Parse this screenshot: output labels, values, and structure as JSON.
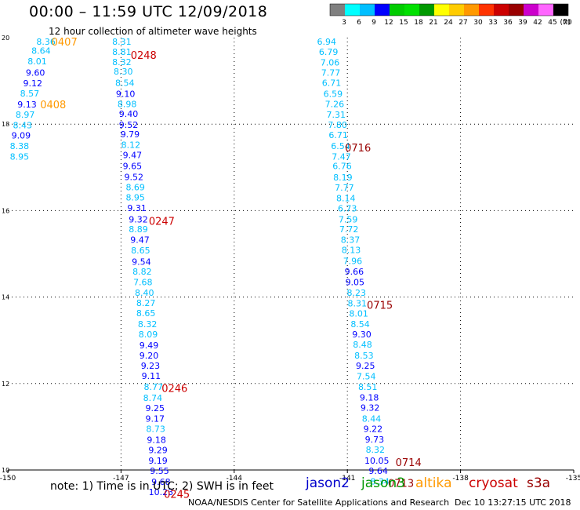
{
  "header": {
    "title": "00:00 – 11:59 UTC 12/09/2018",
    "subtitle": "12 hour collection of altimeter wave heights"
  },
  "footer": {
    "note": "note:  1) Time is in UTC;  2) SWH is in feet",
    "credit": "NOAA/NESDIS Center for Satellite Applications and Research",
    "timestamp": "Dec 10 13:27:15 UTC 2018"
  },
  "satellites": [
    {
      "name": "jason2",
      "color": "#0000cc"
    },
    {
      "name": "jason3",
      "color": "#009900"
    },
    {
      "name": "altika",
      "color": "#ff9900"
    },
    {
      "name": "cryosat",
      "color": "#cc0000"
    },
    {
      "name": "s3a",
      "color": "#990000"
    }
  ],
  "colorbar": {
    "unit": "(ft)",
    "labels": [
      "3",
      "6",
      "9",
      "12",
      "15",
      "18",
      "21",
      "24",
      "27",
      "30",
      "33",
      "36",
      "39",
      "42",
      "45",
      "70"
    ],
    "colors": [
      "#808080",
      "#00ffff",
      "#00bfff",
      "#0000ff",
      "#00cc00",
      "#00e000",
      "#009900",
      "#ffff00",
      "#ffcc00",
      "#ff9900",
      "#ff3300",
      "#cc0000",
      "#990000",
      "#cc00cc",
      "#ff66ff",
      "#000000"
    ]
  },
  "chart_data": {
    "type": "scatter",
    "xlim": [
      -150,
      -135
    ],
    "ylim": [
      10,
      20
    ],
    "x_ticks": [
      "-150",
      "-147",
      "-144",
      "-141",
      "-138",
      "-135"
    ],
    "x_tick_values": [
      -150,
      -147,
      -144,
      -141,
      -138,
      -135
    ],
    "y_ticks": [
      "10",
      "12",
      "14",
      "16",
      "18",
      "20"
    ],
    "y_tick_values": [
      10,
      12,
      14,
      16,
      18,
      20
    ],
    "grid": "dotted",
    "series": [
      {
        "name": "altika",
        "color": "#ff9900",
        "points": [
          {
            "x": -148.99,
            "y": 19.91,
            "v": "8.36",
            "c": "#00bfff"
          },
          {
            "x": -149.12,
            "y": 19.7,
            "v": "8.64",
            "c": "#00bfff"
          },
          {
            "x": -149.22,
            "y": 19.46,
            "v": "8.01",
            "c": "#00bfff"
          },
          {
            "x": -149.27,
            "y": 19.19,
            "v": "9.60",
            "c": "#0000ff"
          },
          {
            "x": -149.34,
            "y": 18.95,
            "v": "9.12",
            "c": "#0000ff"
          },
          {
            "x": -149.42,
            "y": 18.71,
            "v": "8.57",
            "c": "#00bfff"
          },
          {
            "x": -149.49,
            "y": 18.46,
            "v": "9.13",
            "c": "#0000ff"
          },
          {
            "x": -149.54,
            "y": 18.22,
            "v": "8.97",
            "c": "#00bfff"
          },
          {
            "x": -149.61,
            "y": 17.98,
            "v": "8.43",
            "c": "#00bfff"
          },
          {
            "x": -149.65,
            "y": 17.74,
            "v": "9.09",
            "c": "#0000ff"
          },
          {
            "x": -149.69,
            "y": 17.5,
            "v": "8.38",
            "c": "#00bfff"
          },
          {
            "x": -149.69,
            "y": 17.25,
            "v": "8.95",
            "c": "#00bfff"
          }
        ]
      },
      {
        "name": "cryosat",
        "color": "#cc0000",
        "points": [
          {
            "x": -146.98,
            "y": 19.91,
            "v": "8.31",
            "c": "#00bfff"
          },
          {
            "x": -146.98,
            "y": 19.67,
            "v": "8.81",
            "c": "#00bfff"
          },
          {
            "x": -146.98,
            "y": 19.44,
            "v": "8.32",
            "c": "#00bfff"
          },
          {
            "x": -146.94,
            "y": 19.22,
            "v": "8.30",
            "c": "#00bfff"
          },
          {
            "x": -146.9,
            "y": 18.96,
            "v": "8.54",
            "c": "#00bfff"
          },
          {
            "x": -146.88,
            "y": 18.7,
            "v": "9.10",
            "c": "#0000ff"
          },
          {
            "x": -146.84,
            "y": 18.47,
            "v": "8.98",
            "c": "#00bfff"
          },
          {
            "x": -146.8,
            "y": 18.24,
            "v": "9.40",
            "c": "#0000ff"
          },
          {
            "x": -146.8,
            "y": 17.99,
            "v": "9.52",
            "c": "#0000ff"
          },
          {
            "x": -146.76,
            "y": 17.77,
            "v": "9.79",
            "c": "#0000ff"
          },
          {
            "x": -146.74,
            "y": 17.52,
            "v": "8.12",
            "c": "#00bfff"
          },
          {
            "x": -146.7,
            "y": 17.29,
            "v": "9.47",
            "c": "#0000ff"
          },
          {
            "x": -146.7,
            "y": 17.03,
            "v": "9.65",
            "c": "#0000ff"
          },
          {
            "x": -146.66,
            "y": 16.78,
            "v": "9.52",
            "c": "#0000ff"
          },
          {
            "x": -146.62,
            "y": 16.54,
            "v": "8.69",
            "c": "#00bfff"
          },
          {
            "x": -146.62,
            "y": 16.31,
            "v": "8.95",
            "c": "#00bfff"
          },
          {
            "x": -146.58,
            "y": 16.06,
            "v": "9.31",
            "c": "#0000ff"
          },
          {
            "x": -146.54,
            "y": 15.8,
            "v": "9.32",
            "c": "#0000ff"
          },
          {
            "x": -146.54,
            "y": 15.57,
            "v": "8.89",
            "c": "#00bfff"
          },
          {
            "x": -146.5,
            "y": 15.33,
            "v": "9.47",
            "c": "#0000ff"
          },
          {
            "x": -146.48,
            "y": 15.08,
            "v": "8.65",
            "c": "#00bfff"
          },
          {
            "x": -146.46,
            "y": 14.82,
            "v": "9.54",
            "c": "#0000ff"
          },
          {
            "x": -146.44,
            "y": 14.59,
            "v": "8.82",
            "c": "#00bfff"
          },
          {
            "x": -146.42,
            "y": 14.35,
            "v": "7.68",
            "c": "#00bfff"
          },
          {
            "x": -146.38,
            "y": 14.1,
            "v": "8.40",
            "c": "#00bfff"
          },
          {
            "x": -146.34,
            "y": 13.87,
            "v": "8.27",
            "c": "#00bfff"
          },
          {
            "x": -146.34,
            "y": 13.63,
            "v": "8.65",
            "c": "#00bfff"
          },
          {
            "x": -146.3,
            "y": 13.38,
            "v": "8.32",
            "c": "#00bfff"
          },
          {
            "x": -146.28,
            "y": 13.14,
            "v": "8.09",
            "c": "#00bfff"
          },
          {
            "x": -146.26,
            "y": 12.89,
            "v": "9.49",
            "c": "#0000ff"
          },
          {
            "x": -146.26,
            "y": 12.65,
            "v": "9.20",
            "c": "#0000ff"
          },
          {
            "x": -146.22,
            "y": 12.41,
            "v": "9.23",
            "c": "#0000ff"
          },
          {
            "x": -146.2,
            "y": 12.18,
            "v": "9.11",
            "c": "#0000ff"
          },
          {
            "x": -146.14,
            "y": 11.92,
            "v": "8.77",
            "c": "#00bfff"
          },
          {
            "x": -146.16,
            "y": 11.67,
            "v": "8.74",
            "c": "#00bfff"
          },
          {
            "x": -146.1,
            "y": 11.43,
            "v": "9.25",
            "c": "#0000ff"
          },
          {
            "x": -146.1,
            "y": 11.19,
            "v": "9.17",
            "c": "#0000ff"
          },
          {
            "x": -146.08,
            "y": 10.95,
            "v": "8.73",
            "c": "#00bfff"
          },
          {
            "x": -146.06,
            "y": 10.7,
            "v": "9.18",
            "c": "#0000ff"
          },
          {
            "x": -146.02,
            "y": 10.46,
            "v": "9.29",
            "c": "#0000ff"
          },
          {
            "x": -146.02,
            "y": 10.22,
            "v": "9.19",
            "c": "#0000ff"
          },
          {
            "x": -145.98,
            "y": 9.98,
            "v": "9.55",
            "c": "#0000ff"
          },
          {
            "x": -145.94,
            "y": 9.73,
            "v": "9.68",
            "c": "#0000ff"
          },
          {
            "x": -145.94,
            "y": 9.49,
            "v": "10.23",
            "c": "#0000ff"
          }
        ]
      },
      {
        "name": "s3a",
        "color": "#990000",
        "points": [
          {
            "x": -141.55,
            "y": 19.91,
            "v": "6.94",
            "c": "#00bfff"
          },
          {
            "x": -141.5,
            "y": 19.67,
            "v": "6.79",
            "c": "#00bfff"
          },
          {
            "x": -141.46,
            "y": 19.43,
            "v": "7.06",
            "c": "#00bfff"
          },
          {
            "x": -141.44,
            "y": 19.19,
            "v": "7.77",
            "c": "#00bfff"
          },
          {
            "x": -141.42,
            "y": 18.96,
            "v": "6.71",
            "c": "#00bfff"
          },
          {
            "x": -141.38,
            "y": 18.7,
            "v": "6.59",
            "c": "#00bfff"
          },
          {
            "x": -141.34,
            "y": 18.47,
            "v": "7.26",
            "c": "#00bfff"
          },
          {
            "x": -141.3,
            "y": 18.22,
            "v": "7.31",
            "c": "#00bfff"
          },
          {
            "x": -141.26,
            "y": 17.99,
            "v": "7.80",
            "c": "#00bfff"
          },
          {
            "x": -141.24,
            "y": 17.75,
            "v": "6.71",
            "c": "#00bfff"
          },
          {
            "x": -141.18,
            "y": 17.5,
            "v": "6.54",
            "c": "#00bfff"
          },
          {
            "x": -141.16,
            "y": 17.25,
            "v": "7.47",
            "c": "#00bfff"
          },
          {
            "x": -141.14,
            "y": 17.03,
            "v": "6.76",
            "c": "#00bfff"
          },
          {
            "x": -141.12,
            "y": 16.77,
            "v": "8.19",
            "c": "#00bfff"
          },
          {
            "x": -141.08,
            "y": 16.53,
            "v": "7.77",
            "c": "#00bfff"
          },
          {
            "x": -141.04,
            "y": 16.29,
            "v": "8.14",
            "c": "#00bfff"
          },
          {
            "x": -141.0,
            "y": 16.05,
            "v": "6.73",
            "c": "#00bfff"
          },
          {
            "x": -140.98,
            "y": 15.8,
            "v": "7.59",
            "c": "#00bfff"
          },
          {
            "x": -140.96,
            "y": 15.57,
            "v": "7.72",
            "c": "#00bfff"
          },
          {
            "x": -140.92,
            "y": 15.33,
            "v": "8.37",
            "c": "#00bfff"
          },
          {
            "x": -140.9,
            "y": 15.09,
            "v": "8.13",
            "c": "#00bfff"
          },
          {
            "x": -140.86,
            "y": 14.84,
            "v": "7.96",
            "c": "#00bfff"
          },
          {
            "x": -140.82,
            "y": 14.59,
            "v": "9.66",
            "c": "#0000ff"
          },
          {
            "x": -140.8,
            "y": 14.35,
            "v": "9.05",
            "c": "#0000ff"
          },
          {
            "x": -140.76,
            "y": 14.1,
            "v": "8.23",
            "c": "#00bfff"
          },
          {
            "x": -140.74,
            "y": 13.86,
            "v": "8.31",
            "c": "#00bfff"
          },
          {
            "x": -140.7,
            "y": 13.62,
            "v": "8.01",
            "c": "#00bfff"
          },
          {
            "x": -140.66,
            "y": 13.38,
            "v": "8.54",
            "c": "#00bfff"
          },
          {
            "x": -140.62,
            "y": 13.14,
            "v": "9.30",
            "c": "#0000ff"
          },
          {
            "x": -140.6,
            "y": 12.9,
            "v": "8.48",
            "c": "#00bfff"
          },
          {
            "x": -140.56,
            "y": 12.65,
            "v": "8.53",
            "c": "#00bfff"
          },
          {
            "x": -140.52,
            "y": 12.41,
            "v": "9.25",
            "c": "#0000ff"
          },
          {
            "x": -140.5,
            "y": 12.17,
            "v": "7.54",
            "c": "#00bfff"
          },
          {
            "x": -140.46,
            "y": 11.92,
            "v": "8.51",
            "c": "#00bfff"
          },
          {
            "x": -140.42,
            "y": 11.68,
            "v": "9.18",
            "c": "#0000ff"
          },
          {
            "x": -140.4,
            "y": 11.44,
            "v": "9.32",
            "c": "#0000ff"
          },
          {
            "x": -140.36,
            "y": 11.19,
            "v": "8.44",
            "c": "#00bfff"
          },
          {
            "x": -140.32,
            "y": 10.95,
            "v": "9.22",
            "c": "#0000ff"
          },
          {
            "x": -140.28,
            "y": 10.71,
            "v": "9.73",
            "c": "#0000ff"
          },
          {
            "x": -140.26,
            "y": 10.47,
            "v": "8.32",
            "c": "#00bfff"
          },
          {
            "x": -140.22,
            "y": 10.22,
            "v": "10.05",
            "c": "#0000ff"
          },
          {
            "x": -140.18,
            "y": 9.98,
            "v": "9.64",
            "c": "#0000ff"
          },
          {
            "x": -140.14,
            "y": 9.74,
            "v": "8.34",
            "c": "#00bfff"
          }
        ]
      }
    ],
    "pass_times": [
      {
        "label": "0407",
        "color": "#ff9900",
        "x": -148.5,
        "y": 19.91
      },
      {
        "label": "0248",
        "color": "#cc0000",
        "x": -146.4,
        "y": 19.6
      },
      {
        "label": "0408",
        "color": "#ff9900",
        "x": -148.8,
        "y": 18.46
      },
      {
        "label": "0716",
        "color": "#990000",
        "x": -140.72,
        "y": 17.46
      },
      {
        "label": "0247",
        "color": "#cc0000",
        "x": -145.92,
        "y": 15.76
      },
      {
        "label": "0715",
        "color": "#990000",
        "x": -140.14,
        "y": 13.82
      },
      {
        "label": "0246",
        "color": "#cc0000",
        "x": -145.58,
        "y": 11.9
      },
      {
        "label": "0714",
        "color": "#990000",
        "x": -139.38,
        "y": 10.18
      },
      {
        "label": "0713",
        "color": "#990000",
        "x": -139.58,
        "y": 9.7
      },
      {
        "label": "0245",
        "color": "#cc0000",
        "x": -145.52,
        "y": 9.45
      }
    ]
  }
}
